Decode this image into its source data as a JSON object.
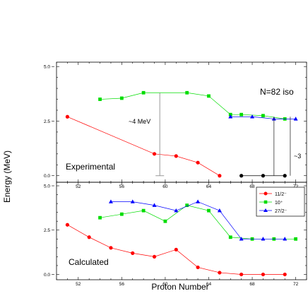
{
  "figure": {
    "ylabel": "Energy (MeV)",
    "xlabel": "Proton Number"
  },
  "chart_data": [
    {
      "type": "line",
      "panel_label": "Experimental",
      "annotation_title": "N=82 iso",
      "annotation_gap1": "~4 MeV",
      "annotation_gap2": "~3",
      "xlim": [
        50,
        73
      ],
      "ylim": [
        -0.3,
        5.2
      ],
      "xticks": [
        52,
        56,
        60,
        64,
        68,
        72
      ],
      "yticks": [
        0.0,
        2.5,
        5.0
      ],
      "ytick_labels": [
        "0.0",
        "2.5",
        "5.0"
      ],
      "series": [
        {
          "name": "11/2⁻",
          "color": "#ff0000",
          "marker": "circle",
          "x": [
            51,
            59,
            61,
            63,
            65
          ],
          "y": [
            2.7,
            1.0,
            0.9,
            0.6,
            0.0
          ]
        },
        {
          "name": "",
          "color": "#000000",
          "marker": "circle",
          "x": [
            67,
            69,
            71
          ],
          "y": [
            0.0,
            0.0,
            0.0
          ]
        },
        {
          "name": "10⁺",
          "color": "#00dd00",
          "marker": "square",
          "x": [
            54,
            56,
            58,
            62,
            64,
            66,
            67,
            69,
            71
          ],
          "y": [
            3.5,
            3.55,
            3.8,
            3.8,
            3.65,
            2.8,
            2.8,
            2.75,
            2.6
          ]
        },
        {
          "name": "27/2⁻",
          "color": "#0000ff",
          "marker": "triangle",
          "x": [
            66,
            68,
            70,
            72
          ],
          "y": [
            2.7,
            2.7,
            2.6,
            2.6
          ]
        }
      ]
    },
    {
      "type": "line",
      "panel_label": "Calculated",
      "xlim": [
        50,
        73
      ],
      "ylim": [
        -0.3,
        5.2
      ],
      "xticks": [
        52,
        56,
        60,
        64,
        68,
        72
      ],
      "yticks": [
        0.0,
        2.5,
        5.0
      ],
      "ytick_labels": [
        "0.0",
        "2.5",
        "5.0"
      ],
      "series": [
        {
          "name": "11/2⁻",
          "color": "#ff0000",
          "marker": "circle",
          "x": [
            51,
            53,
            55,
            57,
            59,
            61,
            63,
            65,
            67,
            69,
            71
          ],
          "y": [
            2.8,
            2.1,
            1.5,
            1.2,
            1.0,
            1.4,
            0.4,
            0.1,
            0.0,
            0.0,
            0.0
          ]
        },
        {
          "name": "10⁺",
          "color": "#00dd00",
          "marker": "square",
          "x": [
            54,
            56,
            58,
            60,
            62,
            64,
            66,
            68,
            70,
            72
          ],
          "y": [
            3.2,
            3.4,
            3.6,
            3.0,
            3.9,
            3.6,
            2.1,
            2.0,
            2.0,
            2.0
          ]
        },
        {
          "name": "27/2⁻",
          "color": "#0000ff",
          "marker": "triangle",
          "x": [
            55,
            57,
            59,
            61,
            63,
            65,
            67,
            69,
            71
          ],
          "y": [
            4.1,
            4.1,
            3.9,
            3.6,
            4.1,
            3.6,
            2.0,
            2.0,
            2.0
          ]
        }
      ]
    }
  ],
  "legend": {
    "placement": "top-right of lower panel",
    "entries": [
      {
        "label": "11/2⁻",
        "color": "#ff0000",
        "marker": "circle"
      },
      {
        "label": "10⁺",
        "color": "#00dd00",
        "marker": "square"
      },
      {
        "label": "27/2⁻",
        "color": "#0000ff",
        "marker": "triangle"
      }
    ]
  }
}
